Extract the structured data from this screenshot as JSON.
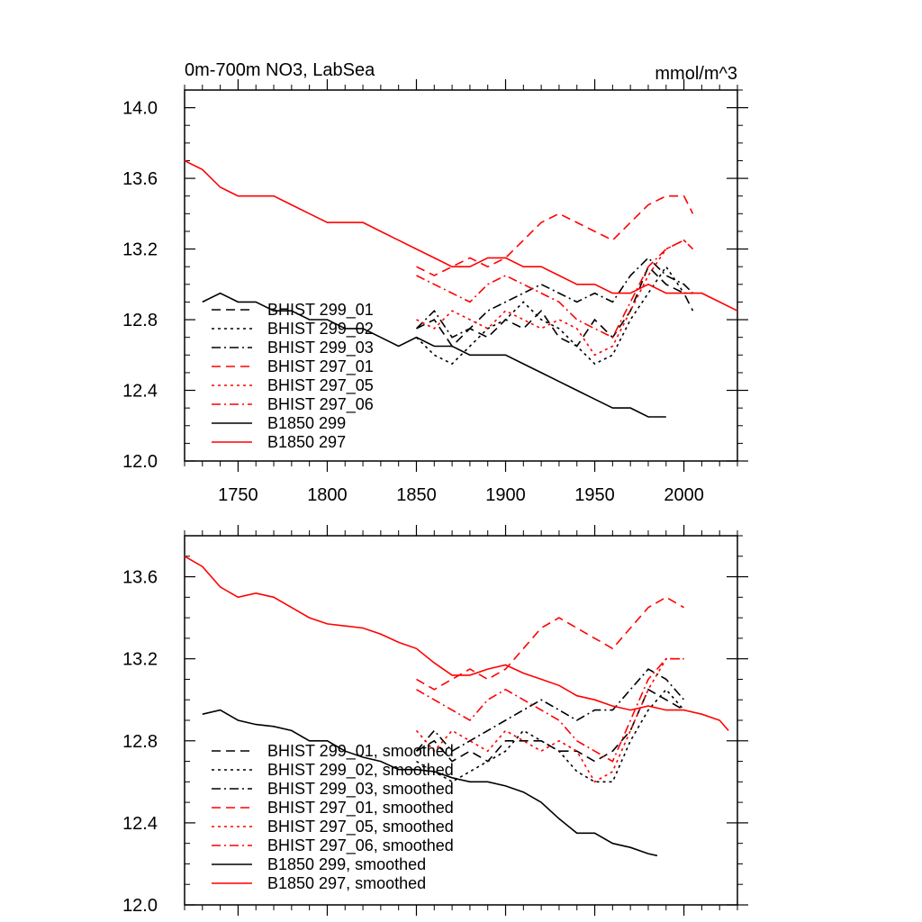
{
  "chart_data": [
    {
      "type": "line",
      "title": "0m-700m NO3, LabSea",
      "units": "mmol/m^3",
      "xlim": [
        1720,
        2030
      ],
      "ylim": [
        12.0,
        14.1
      ],
      "x_ticks": [
        1750,
        1800,
        1850,
        1900,
        1950,
        2000
      ],
      "x_tick_labels": [
        "1750",
        "1800",
        "1850",
        "1900",
        "1950",
        "2000"
      ],
      "y_ticks": [
        12.0,
        12.4,
        12.8,
        13.2,
        13.6,
        14.0
      ],
      "y_tick_labels": [
        "12.0",
        "12.4",
        "12.8",
        "13.2",
        "13.6",
        "14.0"
      ],
      "legend": "bottom-left",
      "series": [
        {
          "name": "BHIST 299_01",
          "color": "#000000",
          "dash": "dash",
          "x": [
            1850,
            1860,
            1870,
            1880,
            1890,
            1900,
            1910,
            1920,
            1930,
            1940,
            1950,
            1960,
            1970,
            1980,
            1990,
            2000,
            2005
          ],
          "values": [
            12.75,
            12.8,
            12.65,
            12.75,
            12.7,
            12.8,
            12.75,
            12.85,
            12.7,
            12.65,
            12.8,
            12.7,
            12.85,
            13.1,
            13.0,
            12.95,
            12.85
          ]
        },
        {
          "name": "BHIST 299_02",
          "color": "#000000",
          "dash": "dot",
          "x": [
            1850,
            1860,
            1870,
            1880,
            1890,
            1900,
            1910,
            1920,
            1930,
            1940,
            1950,
            1960,
            1970,
            1980,
            1990,
            2000,
            2005
          ],
          "values": [
            12.7,
            12.6,
            12.55,
            12.65,
            12.75,
            12.8,
            12.9,
            12.8,
            12.75,
            12.65,
            12.55,
            12.6,
            12.8,
            12.95,
            13.1,
            12.95,
            12.95
          ]
        },
        {
          "name": "BHIST 299_03",
          "color": "#000000",
          "dash": "dashdot",
          "x": [
            1850,
            1860,
            1870,
            1880,
            1890,
            1900,
            1910,
            1920,
            1930,
            1940,
            1950,
            1960,
            1970,
            1980,
            1990,
            2000,
            2005
          ],
          "values": [
            12.75,
            12.85,
            12.7,
            12.75,
            12.85,
            12.9,
            12.95,
            13.0,
            12.95,
            12.9,
            12.95,
            12.9,
            13.05,
            13.15,
            13.05,
            13.0,
            12.95
          ]
        },
        {
          "name": "BHIST 297_01",
          "color": "#ff0000",
          "dash": "dash",
          "x": [
            1850,
            1860,
            1870,
            1880,
            1890,
            1900,
            1910,
            1920,
            1930,
            1940,
            1950,
            1960,
            1970,
            1980,
            1990,
            2000,
            2005
          ],
          "values": [
            13.1,
            13.05,
            13.1,
            13.15,
            13.1,
            13.15,
            13.25,
            13.35,
            13.4,
            13.35,
            13.3,
            13.25,
            13.35,
            13.45,
            13.5,
            13.5,
            13.4
          ]
        },
        {
          "name": "BHIST 297_05",
          "color": "#ff0000",
          "dash": "dot",
          "x": [
            1850,
            1860,
            1870,
            1880,
            1890,
            1900,
            1910,
            1920,
            1930,
            1940,
            1950,
            1960,
            1970,
            1980,
            1990,
            2000,
            2005
          ],
          "values": [
            12.8,
            12.75,
            12.85,
            12.8,
            12.75,
            12.85,
            12.8,
            12.75,
            12.8,
            12.75,
            12.6,
            12.65,
            12.85,
            13.05,
            13.2,
            13.25,
            13.2
          ]
        },
        {
          "name": "BHIST 297_06",
          "color": "#ff0000",
          "dash": "dashdot",
          "x": [
            1850,
            1860,
            1870,
            1880,
            1890,
            1900,
            1910,
            1920,
            1930,
            1940,
            1950,
            1960,
            1970,
            1980,
            1990,
            2000,
            2005
          ],
          "values": [
            13.05,
            13.0,
            12.95,
            12.9,
            13.0,
            13.05,
            13.0,
            12.95,
            12.9,
            12.8,
            12.75,
            12.7,
            12.9,
            13.1,
            13.2,
            13.25,
            13.2
          ]
        },
        {
          "name": "B1850 299",
          "color": "#000000",
          "dash": "solid",
          "x": [
            1730,
            1740,
            1750,
            1760,
            1770,
            1780,
            1790,
            1800,
            1810,
            1820,
            1830,
            1840,
            1850,
            1860,
            1870,
            1880,
            1890,
            1900,
            1910,
            1920,
            1930,
            1940,
            1950,
            1960,
            1970,
            1980,
            1990
          ],
          "values": [
            12.9,
            12.95,
            12.9,
            12.9,
            12.85,
            12.85,
            12.8,
            12.8,
            12.75,
            12.75,
            12.7,
            12.65,
            12.7,
            12.65,
            12.65,
            12.6,
            12.6,
            12.6,
            12.55,
            12.5,
            12.45,
            12.4,
            12.35,
            12.3,
            12.3,
            12.25,
            12.25
          ]
        },
        {
          "name": "B1850 297",
          "color": "#ff0000",
          "dash": "solid",
          "x": [
            1720,
            1730,
            1740,
            1750,
            1760,
            1770,
            1780,
            1790,
            1800,
            1810,
            1820,
            1830,
            1840,
            1850,
            1860,
            1870,
            1880,
            1890,
            1900,
            1910,
            1920,
            1930,
            1940,
            1950,
            1960,
            1970,
            1980,
            1990,
            2000,
            2010,
            2020,
            2030
          ],
          "values": [
            13.7,
            13.65,
            13.55,
            13.5,
            13.5,
            13.5,
            13.45,
            13.4,
            13.35,
            13.35,
            13.35,
            13.3,
            13.25,
            13.2,
            13.15,
            13.1,
            13.1,
            13.15,
            13.15,
            13.1,
            13.1,
            13.05,
            13.0,
            13.0,
            12.95,
            12.95,
            13.0,
            12.95,
            12.95,
            12.95,
            12.9,
            12.85
          ]
        }
      ]
    },
    {
      "type": "line",
      "xlim": [
        1720,
        2030
      ],
      "ylim": [
        12.0,
        13.8
      ],
      "x_ticks": [
        1750,
        1800,
        1850,
        1900,
        1950,
        2000
      ],
      "y_ticks": [
        12.0,
        12.4,
        12.8,
        13.2,
        13.6
      ],
      "y_tick_labels": [
        "12.0",
        "12.4",
        "12.8",
        "13.2",
        "13.6"
      ],
      "legend": "bottom-left",
      "series": [
        {
          "name": "BHIST 299_01, smoothed",
          "color": "#000000",
          "dash": "dash",
          "x": [
            1850,
            1860,
            1870,
            1880,
            1890,
            1900,
            1910,
            1920,
            1930,
            1940,
            1950,
            1960,
            1970,
            1980,
            1990,
            2000
          ],
          "values": [
            12.75,
            12.8,
            12.7,
            12.75,
            12.7,
            12.8,
            12.8,
            12.8,
            12.75,
            12.75,
            12.7,
            12.75,
            12.85,
            13.05,
            13.0,
            12.95
          ]
        },
        {
          "name": "BHIST 299_02, smoothed",
          "color": "#000000",
          "dash": "dot",
          "x": [
            1850,
            1860,
            1870,
            1880,
            1890,
            1900,
            1910,
            1920,
            1930,
            1940,
            1950,
            1960,
            1970,
            1980,
            1990,
            2000
          ],
          "values": [
            12.7,
            12.65,
            12.6,
            12.65,
            12.7,
            12.75,
            12.85,
            12.8,
            12.75,
            12.65,
            12.6,
            12.6,
            12.8,
            12.95,
            13.05,
            12.95
          ]
        },
        {
          "name": "BHIST 299_03, smoothed",
          "color": "#000000",
          "dash": "dashdot",
          "x": [
            1850,
            1860,
            1870,
            1880,
            1890,
            1900,
            1910,
            1920,
            1930,
            1940,
            1950,
            1960,
            1970,
            1980,
            1990,
            2000
          ],
          "values": [
            12.75,
            12.85,
            12.75,
            12.8,
            12.85,
            12.9,
            12.95,
            13.0,
            12.95,
            12.9,
            12.95,
            12.95,
            13.05,
            13.15,
            13.1,
            13.0
          ]
        },
        {
          "name": "BHIST 297_01, smoothed",
          "color": "#ff0000",
          "dash": "dash",
          "x": [
            1850,
            1860,
            1870,
            1880,
            1890,
            1900,
            1910,
            1920,
            1930,
            1940,
            1950,
            1960,
            1970,
            1980,
            1990,
            2000
          ],
          "values": [
            13.1,
            13.05,
            13.1,
            13.15,
            13.1,
            13.15,
            13.25,
            13.35,
            13.4,
            13.35,
            13.3,
            13.25,
            13.35,
            13.45,
            13.5,
            13.45
          ]
        },
        {
          "name": "BHIST 297_05, smoothed",
          "color": "#ff0000",
          "dash": "dot",
          "x": [
            1850,
            1860,
            1870,
            1880,
            1890,
            1900,
            1910,
            1920,
            1930,
            1940,
            1950,
            1960,
            1970,
            1980,
            1990,
            2000
          ],
          "values": [
            12.85,
            12.75,
            12.85,
            12.8,
            12.75,
            12.85,
            12.8,
            12.75,
            12.8,
            12.75,
            12.6,
            12.65,
            12.85,
            13.05,
            13.2,
            13.2
          ]
        },
        {
          "name": "BHIST 297_06, smoothed",
          "color": "#ff0000",
          "dash": "dashdot",
          "x": [
            1850,
            1860,
            1870,
            1880,
            1890,
            1900,
            1910,
            1920,
            1930,
            1940,
            1950,
            1960,
            1970,
            1980,
            1990,
            2000
          ],
          "values": [
            13.05,
            13.0,
            12.95,
            12.9,
            13.0,
            13.05,
            13.0,
            12.95,
            12.9,
            12.8,
            12.75,
            12.7,
            12.9,
            13.1,
            13.2,
            13.2
          ]
        },
        {
          "name": "B1850 299, smoothed",
          "color": "#000000",
          "dash": "solid",
          "x": [
            1730,
            1740,
            1750,
            1760,
            1770,
            1780,
            1790,
            1800,
            1810,
            1820,
            1830,
            1840,
            1850,
            1860,
            1870,
            1880,
            1890,
            1900,
            1910,
            1920,
            1930,
            1940,
            1950,
            1960,
            1970,
            1980,
            1985
          ],
          "values": [
            12.93,
            12.95,
            12.9,
            12.88,
            12.87,
            12.85,
            12.8,
            12.8,
            12.75,
            12.72,
            12.7,
            12.66,
            12.66,
            12.65,
            12.62,
            12.6,
            12.6,
            12.58,
            12.55,
            12.5,
            12.42,
            12.35,
            12.35,
            12.3,
            12.28,
            12.25,
            12.24
          ]
        },
        {
          "name": "B1850 297, smoothed",
          "color": "#ff0000",
          "dash": "solid",
          "x": [
            1720,
            1730,
            1740,
            1750,
            1760,
            1770,
            1780,
            1790,
            1800,
            1810,
            1820,
            1830,
            1840,
            1850,
            1860,
            1870,
            1880,
            1890,
            1900,
            1910,
            1920,
            1930,
            1940,
            1950,
            1960,
            1970,
            1980,
            1990,
            2000,
            2010,
            2020,
            2025
          ],
          "values": [
            13.7,
            13.65,
            13.55,
            13.5,
            13.52,
            13.5,
            13.45,
            13.4,
            13.37,
            13.36,
            13.35,
            13.32,
            13.28,
            13.25,
            13.18,
            13.12,
            13.12,
            13.15,
            13.17,
            13.13,
            13.1,
            13.07,
            13.02,
            13.0,
            12.97,
            12.95,
            12.97,
            12.95,
            12.95,
            12.93,
            12.9,
            12.85
          ]
        }
      ]
    }
  ]
}
